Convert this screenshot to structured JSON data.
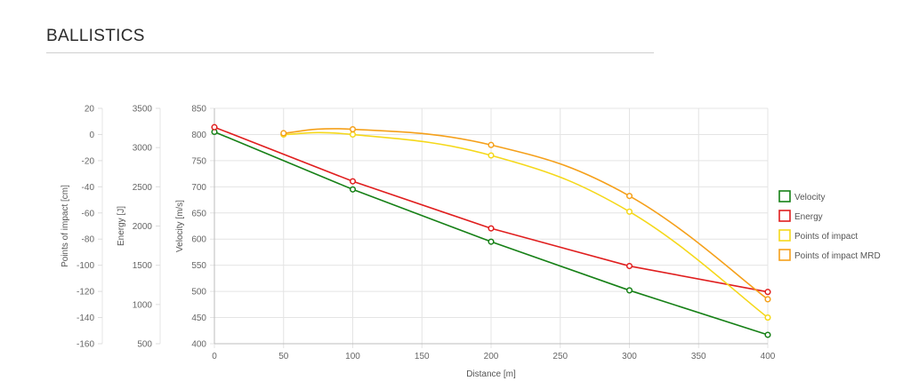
{
  "page": {
    "title": "BALLISTICS"
  },
  "chart_data": {
    "type": "line",
    "xlabel": "Distance [m]",
    "x_ticks": [
      0,
      50,
      100,
      150,
      200,
      250,
      300,
      350,
      400
    ],
    "xlim": [
      0,
      400
    ],
    "grid": true,
    "legend_position": "right",
    "axes": [
      {
        "id": "poi",
        "label": "Points of impact [cm]",
        "range": [
          -160,
          20
        ],
        "ticks": [
          20,
          0,
          -20,
          -40,
          -60,
          -80,
          -100,
          -120,
          -140,
          -160
        ]
      },
      {
        "id": "energy",
        "label": "Energy [J]",
        "range": [
          500,
          3500
        ],
        "ticks": [
          3500,
          3000,
          2500,
          2000,
          1500,
          1000,
          500
        ]
      },
      {
        "id": "velocity",
        "label": "Velocity [m/s]",
        "range": [
          400,
          850
        ],
        "ticks": [
          850,
          800,
          750,
          700,
          650,
          600,
          550,
          500,
          450,
          400
        ]
      }
    ],
    "series": [
      {
        "name": "Velocity",
        "axis": "velocity",
        "color": "#168016",
        "smooth": false,
        "points": [
          [
            0,
            805
          ],
          [
            100,
            695
          ],
          [
            200,
            595
          ],
          [
            300,
            502
          ],
          [
            400,
            417
          ]
        ]
      },
      {
        "name": "Energy",
        "axis": "energy",
        "color": "#e01e1e",
        "smooth": false,
        "points": [
          [
            0,
            3260
          ],
          [
            100,
            2570
          ],
          [
            200,
            1970
          ],
          [
            300,
            1490
          ],
          [
            400,
            1160
          ]
        ]
      },
      {
        "name": "Points of impact",
        "axis": "poi",
        "color": "#f5d81a",
        "smooth": true,
        "points": [
          [
            50,
            0
          ],
          [
            100,
            0
          ],
          [
            200,
            -16
          ],
          [
            300,
            -59
          ],
          [
            400,
            -140
          ]
        ]
      },
      {
        "name": "Points of impact MRD",
        "axis": "poi",
        "color": "#f5a01a",
        "smooth": true,
        "points": [
          [
            50,
            1
          ],
          [
            100,
            4
          ],
          [
            200,
            -8
          ],
          [
            300,
            -47
          ],
          [
            400,
            -126
          ]
        ]
      }
    ]
  }
}
